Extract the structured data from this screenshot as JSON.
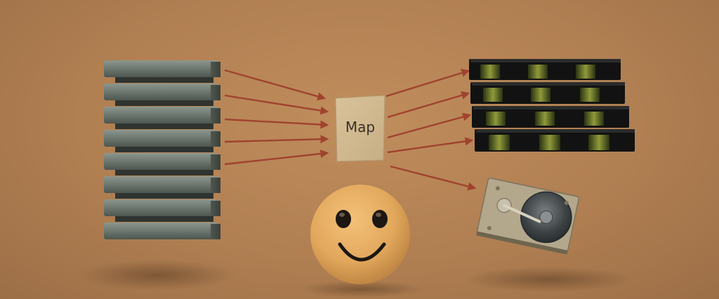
{
  "diagram": {
    "map_label": "Map"
  }
}
